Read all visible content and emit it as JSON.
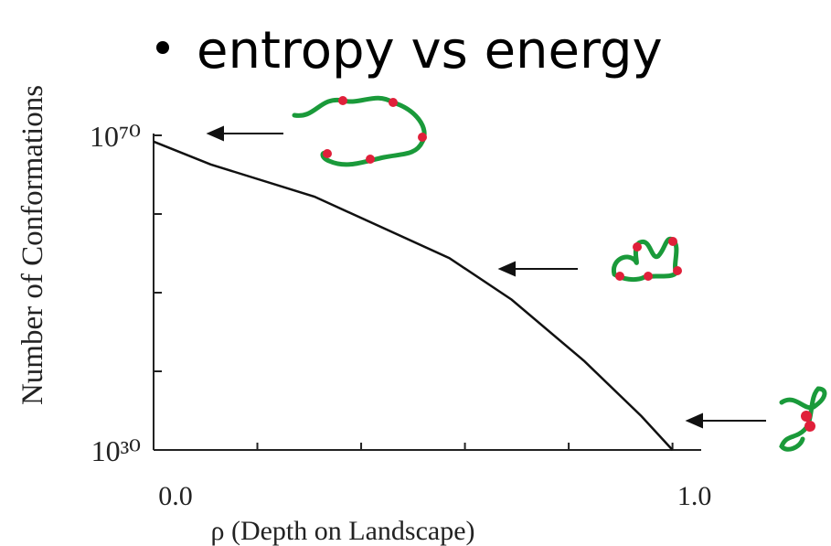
{
  "chart_data": {
    "type": "line",
    "title": "entropy vs energy",
    "x_label": "ρ (Depth on Landscape)",
    "y_label": "Number of Conformations",
    "y_log": true,
    "xlim": [
      0,
      1.05
    ],
    "ylim": [
      1e+30,
      1e+70
    ],
    "xticks": [
      {
        "value": 0,
        "label": "0.0"
      },
      {
        "value": 1,
        "label": "1.0"
      }
    ],
    "xminor": [
      0.2,
      0.4,
      0.6,
      0.8
    ],
    "yticks": [
      {
        "value": 1e+30,
        "label": "10³⁰"
      },
      {
        "value": 1e+70,
        "label": "10⁷⁰"
      }
    ],
    "yminor": [
      1e+40,
      1e+50,
      1e+60
    ],
    "x": [
      0,
      0.11,
      0.31,
      0.57,
      0.69,
      0.83,
      0.94,
      1.0
    ],
    "series": [
      {
        "color": "#111111",
        "values": [
          1.6e+69,
          2e+66,
          1.6e+62,
          2.5e+54,
          1.3e+49,
          2e+41,
          2e+34,
          1e+30
        ]
      }
    ]
  }
}
